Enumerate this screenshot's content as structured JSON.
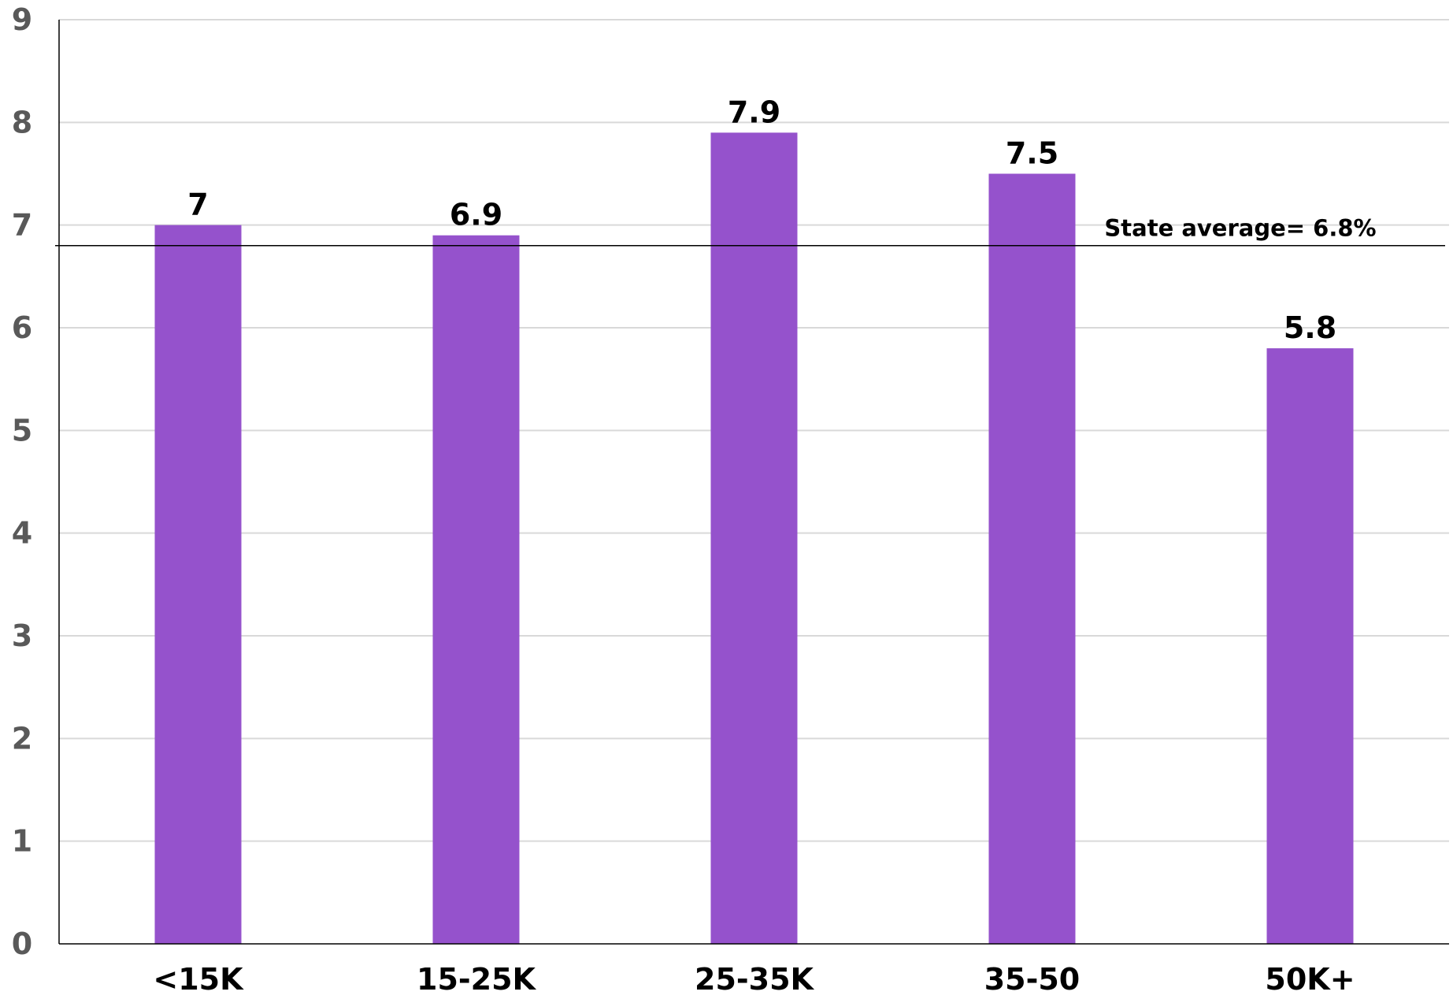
{
  "chart_data": {
    "type": "bar",
    "title": "",
    "xlabel": "",
    "ylabel": "",
    "categories": [
      "<15K",
      "15-25K",
      "25-35K",
      "35-50",
      "50K+"
    ],
    "values": [
      7,
      6.9,
      7.9,
      7.5,
      5.8
    ],
    "value_labels": [
      "7",
      "6.9",
      "7.9",
      "7.5",
      "5.8"
    ],
    "ylim": [
      0,
      9
    ],
    "yticks": [
      "0",
      "1",
      "2",
      "3",
      "4",
      "5",
      "6",
      "7",
      "8",
      "9"
    ],
    "grid": true,
    "legend": "none",
    "bar_color": "#9552CC",
    "reference_line": {
      "value": 6.8,
      "label": "State average= 6.8%",
      "color": "#000000"
    }
  }
}
